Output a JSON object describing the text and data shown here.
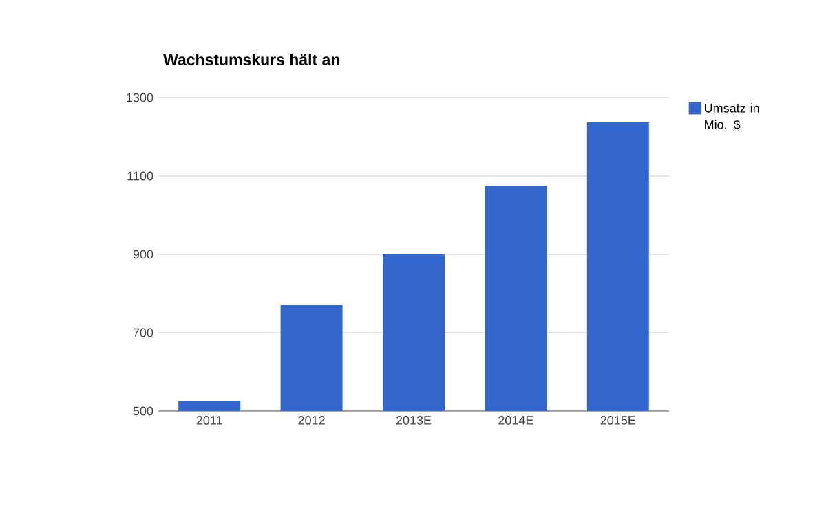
{
  "chart_data": {
    "type": "bar",
    "title": "Wachstumskurs hält an",
    "categories": [
      "2011",
      "2012",
      "2013E",
      "2014E",
      "2015E"
    ],
    "series": [
      {
        "name": "Umsatz in Mio. $",
        "color": "#3366cc",
        "values": [
          525,
          770,
          900,
          1075,
          1237
        ]
      }
    ],
    "ylim": [
      500,
      1300
    ],
    "yticks": [
      500,
      700,
      900,
      1100,
      1300
    ],
    "grid": "y",
    "legend": "right"
  }
}
